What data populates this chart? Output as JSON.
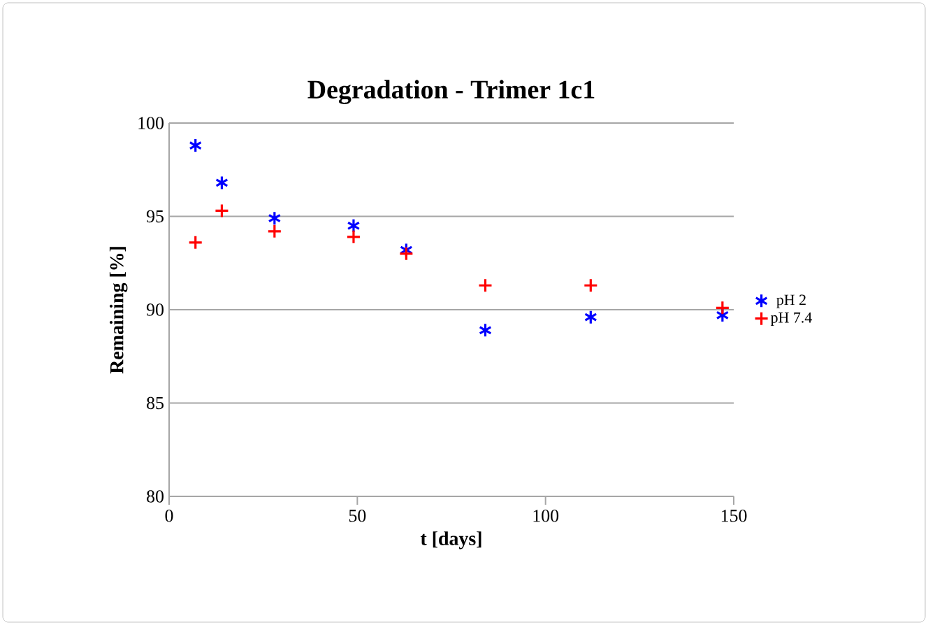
{
  "chart_data": {
    "type": "scatter",
    "title": "Degradation - Trimer 1c1",
    "xlabel": "t [days]",
    "ylabel": "Remaining [%]",
    "x": [
      7,
      14,
      28,
      49,
      63,
      84,
      112,
      147
    ],
    "series": [
      {
        "name": "pH 2",
        "color": "#0000ff",
        "marker": "cross",
        "values": [
          98.8,
          96.8,
          94.9,
          94.5,
          93.2,
          88.9,
          89.6,
          89.7
        ]
      },
      {
        "name": "pH 7.4",
        "color": "#ff0000",
        "marker": "cross",
        "values": [
          93.6,
          95.3,
          94.2,
          93.9,
          93.0,
          91.3,
          91.3,
          90.1
        ]
      }
    ],
    "xlim": [
      0,
      150
    ],
    "xticks": [
      0,
      50,
      100,
      150
    ],
    "ylim": [
      80,
      100
    ],
    "yticks": [
      80,
      85,
      90,
      95,
      100
    ],
    "grid": "y",
    "legend": "right"
  }
}
